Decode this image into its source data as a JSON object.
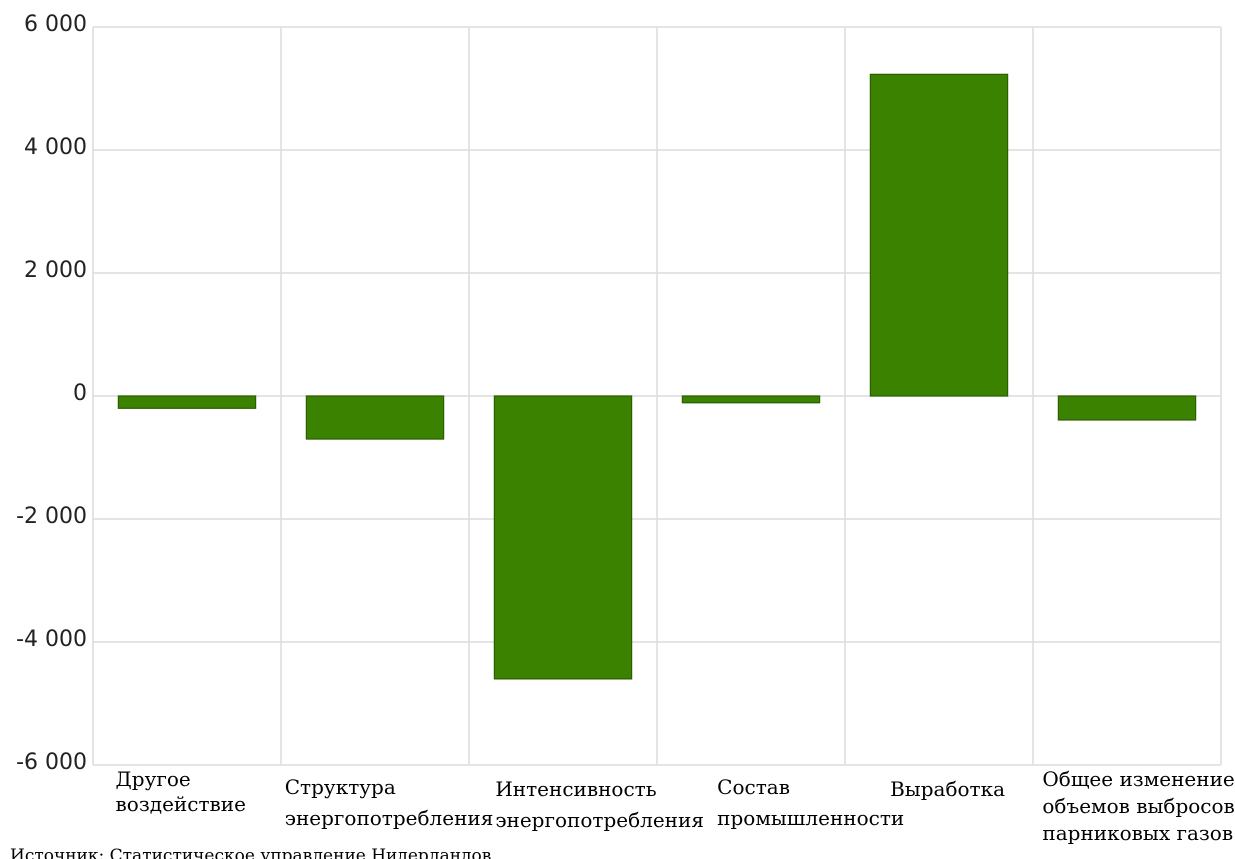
{
  "chart_data": {
    "type": "bar",
    "title": "",
    "xlabel": "",
    "ylabel": "",
    "categories": [
      [
        "Другое",
        "воздействие"
      ],
      [
        "Структура",
        "энергопотребления"
      ],
      [
        "Интенсивность",
        "энергопотребления"
      ],
      [
        "Состав",
        "промышленности"
      ],
      [
        "Выработка"
      ],
      [
        "Общее изменение",
        "объемов выбросов",
        "парниковых газов"
      ]
    ],
    "values": [
      -200,
      -700,
      -4600,
      -110,
      5230,
      -390
    ],
    "ylim": [
      -6000,
      6000
    ],
    "yticks": [
      6000,
      4000,
      2000,
      0,
      -2000,
      -4000,
      -6000
    ],
    "ytick_labels": [
      "6 000",
      "4 000",
      "2 000",
      "0",
      "-2 000",
      "-4 000",
      "-6 000"
    ],
    "grid": true,
    "legend": "none",
    "bar_color": "#3a8200",
    "bar_stroke": "#2a5e00",
    "grid_color": "#dcdcdc"
  },
  "source_note": "Источник: Статистическое управление Нидерландов"
}
